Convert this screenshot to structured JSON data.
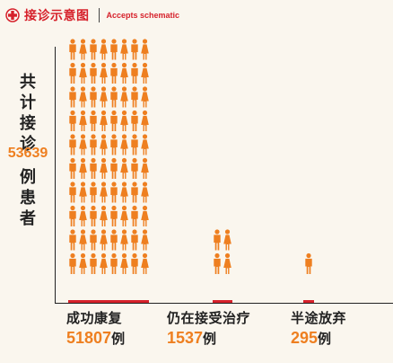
{
  "header": {
    "title_cn": "接诊示意图",
    "title_en": "Accepts schematic",
    "accent_color": "#d6212b"
  },
  "side_label": {
    "top_chars": [
      "共",
      "计",
      "接",
      "诊"
    ],
    "total": "53639",
    "bottom_chars": [
      "例",
      "患",
      "者"
    ]
  },
  "chart_data": {
    "type": "bar",
    "representation": "pictogram",
    "figure_color": "#ee7f20",
    "categories": [
      "成功康复",
      "仍在接受治疗",
      "半途放弃"
    ],
    "values": [
      51807,
      1537,
      295
    ],
    "unit": "例",
    "icons_shown": [
      80,
      4,
      1
    ]
  }
}
